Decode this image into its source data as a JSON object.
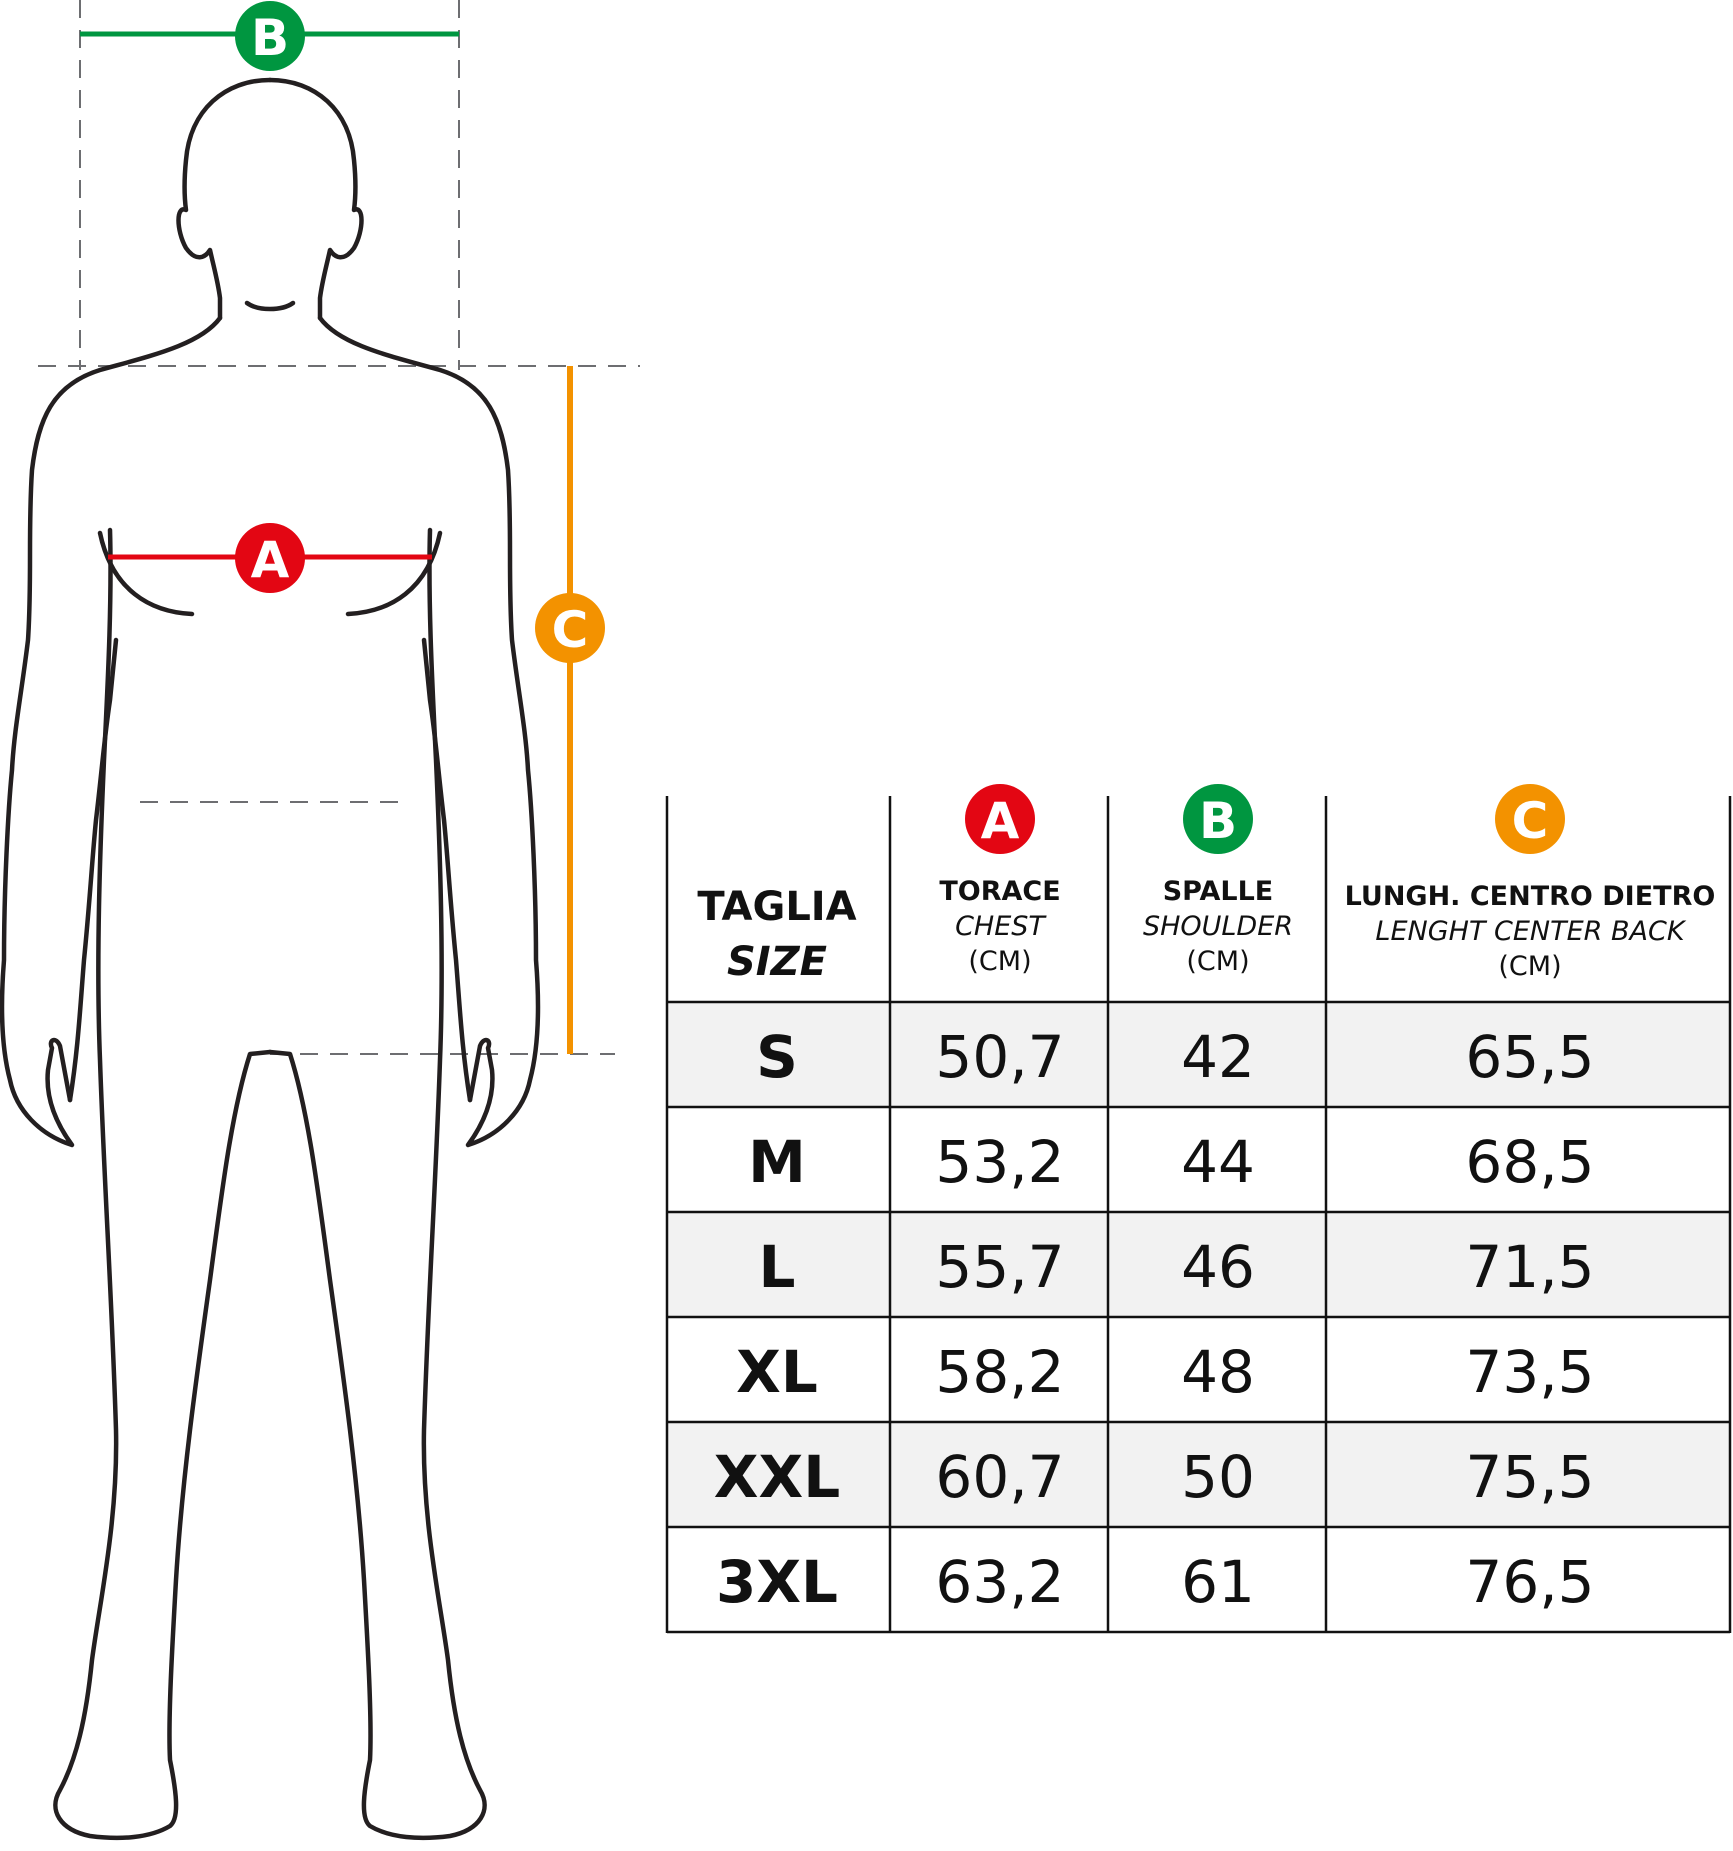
{
  "colors": {
    "a": "#e30613",
    "b": "#009640",
    "c": "#f39200",
    "row_shade": "#f2f2f2",
    "outline": "#231f20"
  },
  "figure": {
    "markers": {
      "a": "A",
      "b": "B",
      "c": "C"
    }
  },
  "table": {
    "header": {
      "size_title": "TAGLIA",
      "size_subtitle": "SIZE",
      "columns": [
        {
          "marker": "A",
          "line1": "TORACE",
          "line2": "CHEST",
          "line3": "(CM)"
        },
        {
          "marker": "B",
          "line1": "SPALLE",
          "line2": "SHOULDER",
          "line3": "(CM)"
        },
        {
          "marker": "C",
          "line1": "LUNGH. CENTRO DIETRO",
          "line2": "LENGHT CENTER BACK",
          "line3": "(CM)"
        }
      ]
    },
    "rows": [
      {
        "size": "S",
        "chest": "50,7",
        "shoulder": "42",
        "back": "65,5"
      },
      {
        "size": "M",
        "chest": "53,2",
        "shoulder": "44",
        "back": "68,5"
      },
      {
        "size": "L",
        "chest": "55,7",
        "shoulder": "46",
        "back": "71,5"
      },
      {
        "size": "XL",
        "chest": "58,2",
        "shoulder": "48",
        "back": "73,5"
      },
      {
        "size": "XXL",
        "chest": "60,7",
        "shoulder": "50",
        "back": "75,5"
      },
      {
        "size": "3XL",
        "chest": "63,2",
        "shoulder": "61",
        "back": "76,5"
      }
    ]
  }
}
